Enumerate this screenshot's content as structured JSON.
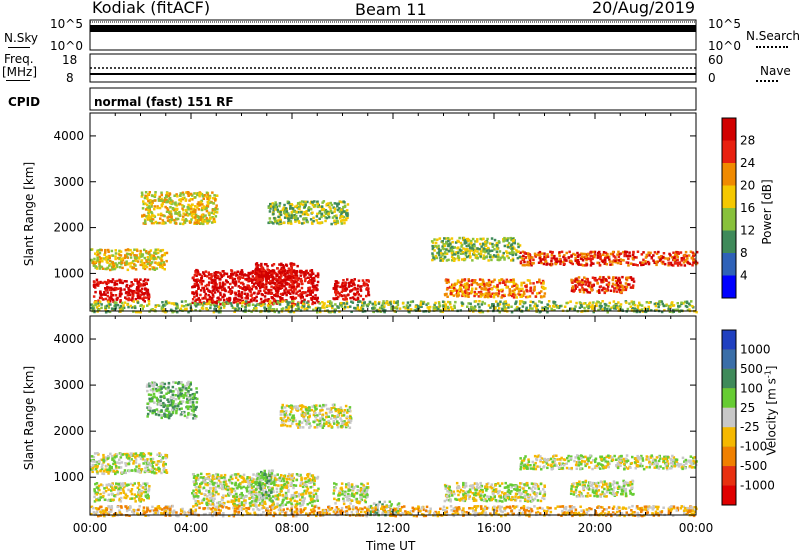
{
  "header": {
    "station": "Kodiak (fitACF)",
    "beam": "Beam 11",
    "date": "20/Aug/2019"
  },
  "sky_panel": {
    "left_label": "N.Sky",
    "right_label": "N.Search",
    "left_ticks": [
      "10^5",
      "10^0"
    ],
    "right_ticks": [
      "10^5",
      "10^0"
    ]
  },
  "freq_panel": {
    "left_label_1": "Freq.",
    "left_label_2": "[MHz]",
    "right_label": "Nave",
    "left_ticks": [
      "18",
      "8"
    ],
    "right_ticks": [
      "60",
      "0"
    ],
    "cpid_label": "CPID",
    "cpid_text": "normal (fast) 151 RF"
  },
  "chart_data": [
    {
      "type": "heatmap",
      "name": "power",
      "ylabel": "Slant Range [km]",
      "xlabel": "",
      "ylim": [
        180,
        4500
      ],
      "yticks": [
        "1000",
        "2000",
        "3000",
        "4000"
      ],
      "colorbar_label": "Power [dB]",
      "colorbar_ticks": [
        "4",
        "8",
        "12",
        "16",
        "20",
        "24",
        "28"
      ],
      "colorbar_colors": [
        "#0000ff",
        "#2f62b8",
        "#3f8a5a",
        "#88c13b",
        "#f5c800",
        "#f08a00",
        "#e8200f",
        "#d10000"
      ],
      "regions": [
        {
          "t": [
            0.1,
            2.3
          ],
          "r": [
            400,
            900
          ],
          "level": 7
        },
        {
          "t": [
            0.0,
            3.0
          ],
          "r": [
            1100,
            1550
          ],
          "level": 4
        },
        {
          "t": [
            2.0,
            5.0
          ],
          "r": [
            2100,
            2800
          ],
          "level": 4
        },
        {
          "t": [
            4.0,
            9.0
          ],
          "r": [
            350,
            1100
          ],
          "level": 7
        },
        {
          "t": [
            6.5,
            8.2
          ],
          "r": [
            700,
            1250
          ],
          "level": 7
        },
        {
          "t": [
            9.6,
            11.0
          ],
          "r": [
            450,
            900
          ],
          "level": 7
        },
        {
          "t": [
            7.0,
            10.2
          ],
          "r": [
            2100,
            2600
          ],
          "level": 3
        },
        {
          "t": [
            14.0,
            18.0
          ],
          "r": [
            500,
            900
          ],
          "level": 5
        },
        {
          "t": [
            17.0,
            24.0
          ],
          "r": [
            1200,
            1500
          ],
          "level": 6
        },
        {
          "t": [
            19.0,
            21.5
          ],
          "r": [
            600,
            950
          ],
          "level": 6
        },
        {
          "t": [
            13.5,
            17.0
          ],
          "r": [
            1300,
            1800
          ],
          "level": 3
        },
        {
          "t": [
            0.0,
            24.0
          ],
          "r": [
            180,
            420
          ],
          "level": 3
        }
      ]
    },
    {
      "type": "heatmap",
      "name": "velocity",
      "ylabel": "Slant Range [km]",
      "xlabel": "Time UT",
      "ylim": [
        180,
        4500
      ],
      "yticks": [
        "1000",
        "2000",
        "3000",
        "4000"
      ],
      "xticks": [
        "00:00",
        "04:00",
        "08:00",
        "12:00",
        "16:00",
        "20:00",
        "00:00"
      ],
      "colorbar_label": "Velocity [m s-1]",
      "colorbar_ticks": [
        "1000",
        "500",
        "100",
        "25",
        "-25",
        "-100",
        "-500",
        "-1000"
      ],
      "colorbar_colors": [
        "#2040c0",
        "#3a6ea8",
        "#3f8a5a",
        "#66cc33",
        "#c8c8c8",
        "#f5b800",
        "#f08000",
        "#e83010",
        "#e00000"
      ],
      "regions": [
        {
          "t": [
            0.1,
            2.3
          ],
          "r": [
            500,
            900
          ],
          "level": 4
        },
        {
          "t": [
            0.0,
            3.0
          ],
          "r": [
            1100,
            1550
          ],
          "level": 4
        },
        {
          "t": [
            2.2,
            4.2
          ],
          "r": [
            2300,
            3100
          ],
          "level": 3
        },
        {
          "t": [
            4.0,
            9.0
          ],
          "r": [
            400,
            1100
          ],
          "level": 4
        },
        {
          "t": [
            6.5,
            7.2
          ],
          "r": [
            500,
            1200
          ],
          "level": 3
        },
        {
          "t": [
            9.6,
            11.0
          ],
          "r": [
            450,
            900
          ],
          "level": 4
        },
        {
          "t": [
            11.0,
            12.2
          ],
          "r": [
            200,
            500
          ],
          "level": 3
        },
        {
          "t": [
            7.5,
            10.3
          ],
          "r": [
            2100,
            2600
          ],
          "level": 4
        },
        {
          "t": [
            14.0,
            18.0
          ],
          "r": [
            500,
            900
          ],
          "level": 4
        },
        {
          "t": [
            17.0,
            24.0
          ],
          "r": [
            1200,
            1500
          ],
          "level": 4
        },
        {
          "t": [
            19.0,
            21.5
          ],
          "r": [
            600,
            950
          ],
          "level": 4
        },
        {
          "t": [
            0.0,
            24.0
          ],
          "r": [
            180,
            400
          ],
          "level": 5
        }
      ]
    }
  ]
}
